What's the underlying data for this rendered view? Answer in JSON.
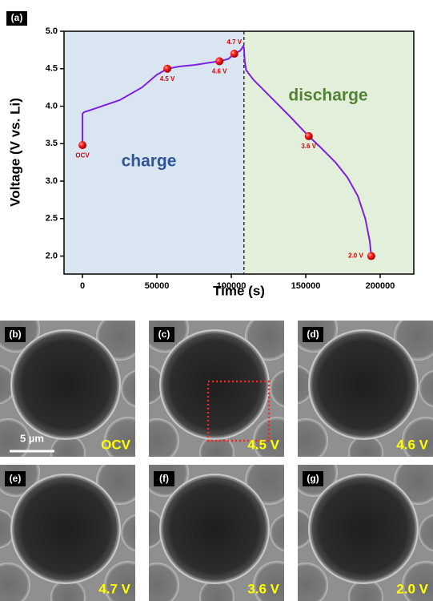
{
  "chart_data": {
    "type": "line",
    "panel": "(a)",
    "xlabel": "Time (s)",
    "ylabel": "Voltage (V vs. Li)",
    "xlim": [
      -12400,
      222600
    ],
    "ylim": [
      1.76,
      5.0
    ],
    "xticks": [
      0,
      50000,
      100000,
      150000,
      200000
    ],
    "yticks": [
      {
        "value": 2,
        "label": "2.0"
      },
      2.5,
      {
        "value": 3,
        "label": "3.0"
      },
      3.5,
      {
        "value": 4,
        "label": "4.0"
      },
      4.5,
      {
        "value": 5,
        "label": "5.0"
      }
    ],
    "divider_x": 108500,
    "regions": [
      {
        "label": "charge",
        "color": "#dae5f2",
        "text_color": "#2f5597"
      },
      {
        "label": "discharge",
        "color": "#e2efda",
        "text_color": "#548235"
      }
    ],
    "series": [
      {
        "color": "#7f1fe0",
        "x": [
          0,
          0,
          1000,
          10000,
          25000,
          40000,
          50000,
          57000,
          65000,
          75000,
          85000,
          92000,
          98000,
          102000,
          106000,
          108000,
          108500,
          109000,
          110000,
          115000,
          120000,
          130000,
          140000,
          152000,
          160000,
          170000,
          178000,
          185000,
          190000,
          193000,
          194000
        ],
        "values": [
          3.48,
          3.9,
          3.92,
          3.98,
          4.08,
          4.25,
          4.42,
          4.5,
          4.53,
          4.55,
          4.58,
          4.6,
          4.63,
          4.7,
          4.74,
          4.8,
          4.78,
          4.6,
          4.48,
          4.35,
          4.25,
          4.05,
          3.85,
          3.6,
          3.45,
          3.25,
          3.05,
          2.8,
          2.5,
          2.2,
          2.0
        ]
      }
    ],
    "points": {
      "color": "#e00000",
      "x": [
        0,
        57000,
        92000,
        102000,
        152000,
        194000
      ],
      "values": [
        3.48,
        4.5,
        4.6,
        4.7,
        3.6,
        2.0
      ],
      "value_labels": [
        "OCV",
        "4.5 V",
        "4.6 V",
        "4.7 V",
        "3.6 V",
        "2.0 V"
      ]
    }
  },
  "panels": [
    {
      "tag": "(b)",
      "label": "OCV"
    },
    {
      "tag": "(c)",
      "label": "4.5 V"
    },
    {
      "tag": "(d)",
      "label": "4.6 V"
    },
    {
      "tag": "(e)",
      "label": "4.7 V"
    },
    {
      "tag": "(f)",
      "label": "3.6 V"
    },
    {
      "tag": "(g)",
      "label": "2.0 V"
    }
  ],
  "scale_bar": "5 µm"
}
